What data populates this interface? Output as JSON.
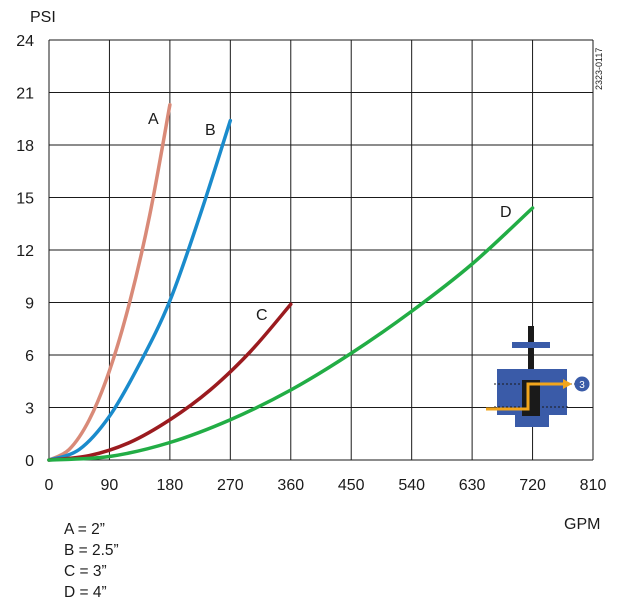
{
  "chart_data": {
    "type": "line",
    "xlabel": "GPM",
    "ylabel": "PSI",
    "xlim": [
      0,
      810
    ],
    "ylim": [
      0,
      24
    ],
    "x_ticks": [
      "0",
      "90",
      "180",
      "270",
      "360",
      "450",
      "540",
      "630",
      "720",
      "810"
    ],
    "y_ticks": [
      "0",
      "3",
      "6",
      "9",
      "12",
      "15",
      "18",
      "21",
      "24"
    ],
    "grid": true,
    "figure_code": "2323-0117",
    "series": [
      {
        "name": "A",
        "color": "#d98a78",
        "points": [
          [
            0,
            0
          ],
          [
            30,
            0.6
          ],
          [
            60,
            2.3
          ],
          [
            90,
            5.1
          ],
          [
            120,
            9.0
          ],
          [
            150,
            14.0
          ],
          [
            180,
            20.3
          ]
        ]
      },
      {
        "name": "B",
        "color": "#1a8bcc",
        "points": [
          [
            0,
            0
          ],
          [
            45,
            0.6
          ],
          [
            90,
            2.5
          ],
          [
            135,
            5.5
          ],
          [
            180,
            9.1
          ],
          [
            225,
            14.0
          ],
          [
            270,
            19.4
          ]
        ]
      },
      {
        "name": "C",
        "color": "#9b1b1f",
        "points": [
          [
            0,
            0
          ],
          [
            60,
            0.25
          ],
          [
            120,
            1.0
          ],
          [
            180,
            2.3
          ],
          [
            240,
            4.0
          ],
          [
            300,
            6.2
          ],
          [
            360,
            8.9
          ]
        ]
      },
      {
        "name": "D",
        "color": "#22ad45",
        "points": [
          [
            0,
            0
          ],
          [
            90,
            0.2
          ],
          [
            180,
            1.0
          ],
          [
            270,
            2.3
          ],
          [
            360,
            4.0
          ],
          [
            450,
            6.1
          ],
          [
            540,
            8.5
          ],
          [
            630,
            11.2
          ],
          [
            720,
            14.4
          ]
        ]
      }
    ],
    "annotations": [
      "A",
      "B",
      "C",
      "D"
    ]
  },
  "legend": {
    "items": [
      "A = 2”",
      "B = 2.5”",
      "C = 3”",
      "D = 4”"
    ]
  },
  "icon": {
    "name": "valve-flow-diagram-icon",
    "badge": "3",
    "colors": {
      "body": "#3a5ba8",
      "flow": "#f2a51c",
      "stem": "#1a1a1a"
    }
  }
}
